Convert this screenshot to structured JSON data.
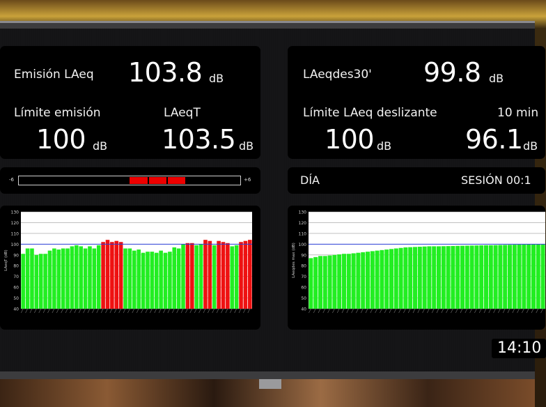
{
  "left_panel": {
    "emision_label": "Emisión LAeq",
    "emision_value": "103.8",
    "emision_unit": "dB",
    "limite_label": "Límite emisión",
    "limite_value": "100",
    "limite_unit": "dB",
    "laeqt_label": "LAeqT",
    "laeqt_value": "103.5",
    "laeqt_unit": "dB"
  },
  "right_panel": {
    "laeqdes_label": "LAeqdes30'",
    "laeqdes_value": "99.8",
    "laeqdes_unit": "dB",
    "limite_label": "Límite LAeq deslizante",
    "limite_value": "100",
    "limite_unit": "dB",
    "window_label": "10 min",
    "window_value": "96.1",
    "window_unit": "dB"
  },
  "meter": {
    "min_label": "-6",
    "max_label": "+6",
    "active_segments": 3
  },
  "status_bar": {
    "period": "DÍA",
    "session": "SESIÓN 00:1"
  },
  "clock": "14:10",
  "colors": {
    "ok_bar": "#22ee22",
    "over_bar": "#ee1111",
    "limit_line": "#2a3fd8",
    "grid": "#9a9a9a"
  },
  "chart_data": [
    {
      "type": "bar",
      "ylabel": "LAeqT (dB)",
      "ylim": [
        40,
        130
      ],
      "yticks": [
        40,
        50,
        60,
        70,
        80,
        90,
        100,
        110,
        120,
        130
      ],
      "limit": 100,
      "values": [
        91,
        96,
        96,
        90,
        91,
        91,
        94,
        96,
        95,
        96,
        96,
        98,
        99,
        98,
        96,
        98,
        96,
        99,
        102,
        104,
        102,
        103,
        102,
        96,
        96,
        94,
        95,
        92,
        93,
        93,
        92,
        94,
        92,
        93,
        97,
        96,
        100,
        101,
        101,
        99,
        100,
        104,
        103,
        99,
        103,
        102,
        101,
        98,
        99,
        102,
        103,
        104
      ]
    },
    {
      "type": "bar",
      "ylabel": "LAeqdes max (dB)",
      "ylim": [
        40,
        130
      ],
      "yticks": [
        40,
        50,
        60,
        70,
        80,
        90,
        100,
        110,
        120,
        130
      ],
      "limit": 100,
      "values": [
        87,
        88,
        89,
        89,
        89.5,
        90,
        90.5,
        91,
        91,
        91.5,
        92,
        92.5,
        93,
        93.5,
        94,
        94.5,
        95,
        95.5,
        96,
        96.5,
        97,
        97.2,
        97.4,
        97.6,
        97.8,
        98,
        98,
        98,
        98.1,
        98.2,
        98.3,
        98.4,
        98.5,
        98.6,
        98.7,
        98.8,
        98.9,
        99,
        99,
        99.1,
        99.2,
        99.3,
        99.4,
        99.5,
        99.6,
        99.7,
        99.8,
        99.8,
        99.8,
        99.8
      ]
    }
  ]
}
